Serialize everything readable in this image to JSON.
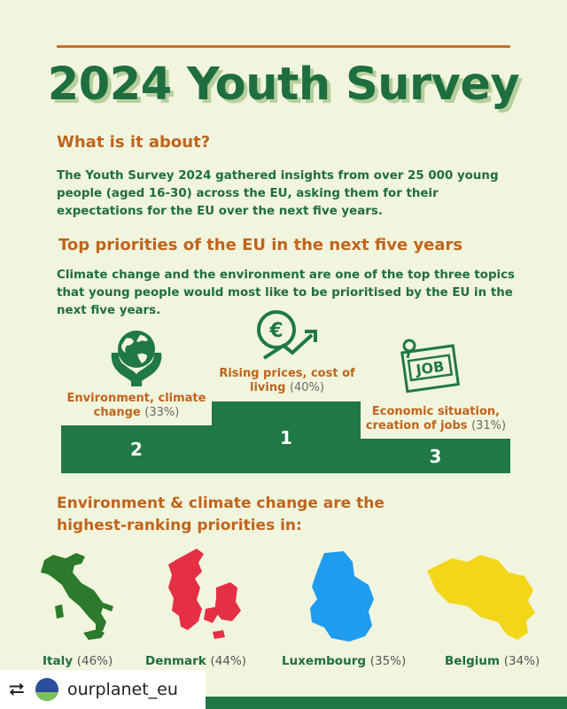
{
  "title": "2024 Youth Survey",
  "about": {
    "heading": "What is it about?",
    "text": "The Youth Survey 2024 gathered insights from over 25 000 young people (aged 16-30) across the EU, asking them for their expectations for the EU over the next five years."
  },
  "priorities": {
    "heading": "Top priorities of the EU in the next five years",
    "text": "Climate change and the environment are one of the top three topics that young people would most like to be prioritised by the EU in the next five years.",
    "items": [
      {
        "rank": "2",
        "label": "Environment, climate change",
        "pct": "(33%)",
        "icon": "earth-in-hands-icon"
      },
      {
        "rank": "1",
        "label": "Rising prices, cost of living",
        "pct": "(40%)",
        "icon": "euro-rising-arrow-icon"
      },
      {
        "rank": "3",
        "label": "Economic situation, creation of jobs",
        "pct": "(31%)",
        "icon": "job-board-icon"
      }
    ]
  },
  "countries": {
    "heading": "Environment & climate change are the highest-ranking priorities in:",
    "items": [
      {
        "name": "Italy",
        "pct": "(46%)",
        "color": "#2c7a2b"
      },
      {
        "name": "Denmark",
        "pct": "(44%)",
        "color": "#e52f45"
      },
      {
        "name": "Luxembourg",
        "pct": "(35%)",
        "color": "#1f9cf0"
      },
      {
        "name": "Belgium",
        "pct": "(34%)",
        "color": "#f4d51a"
      }
    ]
  },
  "repost": {
    "account": "ourplanet_eu",
    "icon": "repost-icon"
  }
}
